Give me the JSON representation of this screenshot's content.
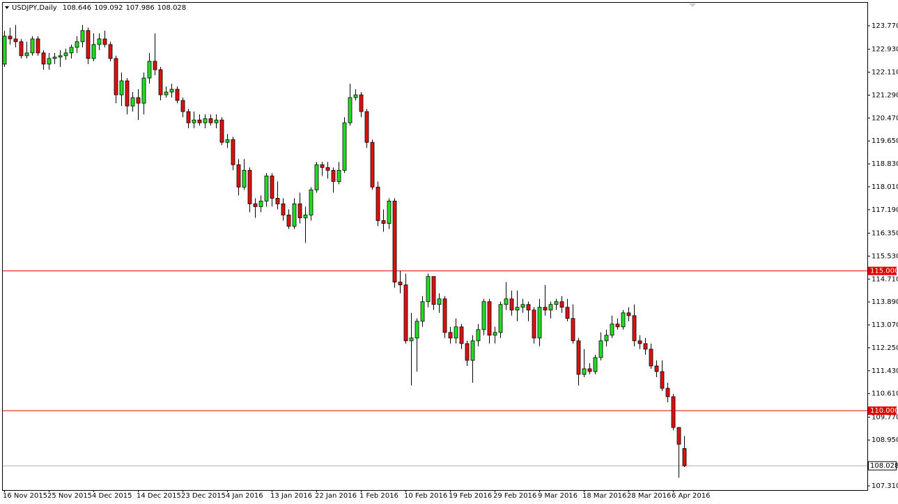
{
  "chart_data": {
    "type": "candlestick",
    "symbol": "USDJPY,Daily",
    "header_values": [
      108.646,
      109.092,
      107.986,
      108.028
    ],
    "categories": [
      "16 Nov 2015",
      null,
      null,
      null,
      null,
      null,
      null,
      null,
      "25 Nov 2015",
      null,
      null,
      null,
      null,
      null,
      null,
      null,
      "4 Dec 2015",
      null,
      null,
      null,
      null,
      null,
      null,
      null,
      "14 Dec 2015",
      null,
      null,
      null,
      null,
      null,
      null,
      null,
      "23 Dec 2015",
      null,
      null,
      null,
      null,
      null,
      null,
      null,
      "4 Jan 2016",
      null,
      null,
      null,
      null,
      null,
      null,
      null,
      "13 Jan 2016",
      null,
      null,
      null,
      null,
      null,
      null,
      null,
      "22 Jan 2016",
      null,
      null,
      null,
      null,
      null,
      null,
      null,
      "1 Feb 2016",
      null,
      null,
      null,
      null,
      null,
      null,
      null,
      "10 Feb 2016",
      null,
      null,
      null,
      null,
      null,
      null,
      null,
      "19 Feb 2016",
      null,
      null,
      null,
      null,
      null,
      null,
      null,
      "29 Feb 2016",
      null,
      null,
      null,
      null,
      null,
      null,
      null,
      "9 Mar 2016",
      null,
      null,
      null,
      null,
      null,
      null,
      null,
      "18 Mar 2016",
      null,
      null,
      null,
      null,
      null,
      null,
      null,
      "28 Mar 2016",
      null,
      null,
      null,
      null,
      null,
      null,
      null,
      "6 Apr 2016",
      null,
      null
    ],
    "open": [
      122.4,
      123.4,
      123.3,
      123.2,
      122.7,
      122.8,
      123.3,
      122.8,
      122.4,
      122.6,
      122.65,
      122.7,
      122.8,
      123.0,
      123.2,
      123.6,
      122.6,
      123.1,
      123.3,
      123.1,
      122.6,
      121.3,
      121.8,
      120.9,
      121.2,
      121.0,
      121.9,
      122.5,
      122.2,
      121.3,
      121.4,
      121.5,
      121.1,
      120.7,
      120.3,
      120.4,
      120.3,
      120.45,
      120.3,
      120.4,
      119.6,
      119.7,
      118.8,
      118.0,
      118.6,
      117.4,
      117.3,
      117.5,
      118.4,
      117.6,
      117.4,
      117.0,
      116.6,
      117.4,
      116.9,
      117.0,
      117.9,
      118.8,
      118.7,
      118.6,
      118.2,
      118.6,
      120.3,
      121.2,
      121.3,
      120.7,
      119.6,
      118.0,
      116.8,
      116.7,
      117.5,
      114.6,
      114.5,
      112.5,
      112.6,
      113.2,
      113.9,
      114.8,
      113.8,
      114.0,
      112.8,
      112.6,
      113.0,
      112.4,
      111.8,
      112.5,
      112.9,
      113.9,
      112.7,
      112.8,
      113.8,
      114.0,
      113.6,
      113.7,
      113.8,
      113.6,
      112.6,
      113.7,
      113.6,
      113.8,
      113.9,
      113.7,
      113.3,
      112.5,
      111.3,
      111.5,
      111.4,
      111.9,
      112.5,
      112.7,
      113.1,
      113.0,
      113.5,
      113.4,
      112.5,
      112.4,
      112.2,
      111.6,
      111.4,
      110.8,
      110.5,
      109.4,
      108.646
    ],
    "high": [
      123.6,
      123.7,
      123.8,
      123.3,
      123.2,
      123.4,
      123.4,
      122.9,
      122.8,
      122.8,
      122.9,
      122.95,
      123.1,
      123.4,
      123.8,
      123.7,
      123.5,
      123.5,
      123.6,
      123.2,
      122.7,
      122.1,
      121.9,
      121.4,
      121.5,
      122.1,
      122.8,
      123.5,
      122.3,
      121.6,
      121.7,
      121.6,
      121.2,
      120.8,
      120.7,
      120.6,
      120.6,
      120.6,
      120.6,
      120.5,
      119.9,
      119.8,
      119.0,
      119.0,
      118.7,
      117.6,
      117.7,
      118.5,
      118.5,
      118.2,
      117.6,
      117.2,
      117.6,
      117.8,
      117.3,
      118.0,
      118.9,
      118.9,
      118.9,
      118.7,
      118.9,
      120.5,
      121.7,
      121.5,
      121.4,
      120.8,
      119.7,
      118.2,
      117.2,
      117.6,
      117.6,
      115.0,
      114.9,
      113.5,
      113.3,
      114.1,
      114.9,
      114.8,
      114.2,
      114.1,
      113.0,
      113.3,
      113.1,
      112.5,
      112.7,
      113.1,
      114.0,
      114.0,
      113.0,
      113.9,
      114.6,
      114.3,
      114.3,
      114.0,
      113.9,
      113.7,
      114.0,
      114.5,
      113.9,
      114.0,
      114.1,
      114.0,
      113.8,
      112.6,
      112.2,
      111.7,
      112.0,
      112.8,
      112.9,
      113.4,
      113.3,
      113.6,
      113.7,
      113.8,
      112.7,
      112.6,
      112.4,
      111.8,
      111.8,
      111.0,
      110.6,
      109.4,
      109.092
    ],
    "low": [
      122.3,
      123.1,
      123.0,
      122.6,
      122.6,
      122.7,
      122.7,
      122.2,
      122.2,
      122.4,
      122.3,
      122.55,
      122.6,
      122.8,
      123.0,
      122.4,
      122.5,
      122.9,
      123.0,
      122.5,
      121.0,
      120.9,
      120.6,
      120.7,
      120.4,
      120.6,
      121.7,
      122.0,
      121.1,
      121.2,
      121.2,
      121.0,
      120.5,
      120.1,
      120.1,
      120.2,
      120.1,
      120.2,
      120.1,
      119.5,
      119.4,
      118.6,
      117.7,
      117.9,
      117.1,
      116.9,
      117.1,
      117.3,
      117.3,
      117.2,
      116.8,
      116.5,
      116.5,
      116.7,
      116.0,
      116.8,
      117.8,
      118.4,
      118.3,
      117.8,
      118.1,
      118.5,
      120.2,
      121.1,
      120.5,
      119.4,
      117.9,
      116.6,
      116.4,
      116.5,
      114.4,
      114.2,
      112.4,
      110.9,
      111.4,
      113.0,
      113.7,
      113.6,
      113.5,
      112.6,
      112.4,
      112.4,
      112.2,
      111.6,
      111.0,
      112.3,
      112.7,
      112.4,
      112.4,
      112.6,
      113.6,
      113.4,
      113.2,
      113.5,
      113.2,
      112.4,
      112.3,
      113.4,
      113.3,
      113.6,
      113.5,
      113.2,
      112.4,
      110.9,
      111.2,
      111.3,
      111.3,
      111.8,
      112.3,
      112.6,
      112.9,
      112.9,
      113.2,
      112.3,
      112.2,
      112.0,
      111.5,
      111.2,
      110.7,
      110.3,
      109.3,
      107.6,
      107.986
    ],
    "close": [
      123.4,
      123.3,
      123.2,
      122.7,
      122.8,
      123.3,
      122.8,
      122.4,
      122.6,
      122.65,
      122.7,
      122.8,
      123.0,
      123.2,
      123.6,
      122.6,
      123.1,
      123.3,
      123.1,
      122.6,
      121.3,
      121.8,
      120.9,
      121.2,
      121.0,
      121.9,
      122.5,
      122.2,
      121.3,
      121.4,
      121.5,
      121.1,
      120.7,
      120.3,
      120.4,
      120.3,
      120.45,
      120.3,
      120.4,
      119.6,
      119.7,
      118.8,
      118.0,
      118.6,
      117.4,
      117.3,
      117.5,
      118.4,
      117.6,
      117.4,
      117.0,
      116.6,
      117.4,
      116.9,
      117.0,
      117.9,
      118.8,
      118.7,
      118.6,
      118.2,
      118.6,
      120.3,
      121.2,
      121.3,
      120.7,
      119.6,
      118.0,
      116.8,
      116.7,
      117.5,
      114.6,
      114.5,
      112.5,
      112.6,
      113.2,
      113.9,
      114.8,
      113.8,
      114.0,
      112.8,
      112.6,
      113.0,
      112.4,
      111.8,
      112.5,
      112.9,
      113.9,
      112.7,
      112.8,
      113.8,
      114.0,
      113.6,
      113.7,
      113.8,
      113.6,
      112.6,
      113.7,
      113.6,
      113.8,
      113.9,
      113.7,
      113.3,
      112.5,
      111.3,
      111.5,
      111.4,
      111.9,
      112.5,
      112.7,
      113.1,
      113.0,
      113.5,
      113.4,
      112.5,
      112.4,
      112.2,
      111.6,
      111.4,
      110.8,
      110.5,
      109.4,
      108.8,
      108.028
    ],
    "up_color": "#22dd22",
    "down_color": "#dd1111",
    "ylim": [
      107.16,
      124.618
    ],
    "yticks": [
      {
        "value": 123.77,
        "label": "123.770"
      },
      {
        "value": 122.93,
        "label": "122.930"
      },
      {
        "value": 122.11,
        "label": "122.110"
      },
      {
        "value": 121.29,
        "label": "121.290"
      },
      {
        "value": 120.47,
        "label": "120.470"
      },
      {
        "value": 119.65,
        "label": "119.650"
      },
      {
        "value": 118.83,
        "label": "118.830"
      },
      {
        "value": 118.01,
        "label": "118.010"
      },
      {
        "value": 117.19,
        "label": "117.190"
      },
      {
        "value": 116.35,
        "label": "116.350"
      },
      {
        "value": 115.53,
        "label": "115.530"
      },
      {
        "value": 114.71,
        "label": "114.710"
      },
      {
        "value": 113.89,
        "label": "113.890"
      },
      {
        "value": 113.07,
        "label": "113.070"
      },
      {
        "value": 112.25,
        "label": "112.250"
      },
      {
        "value": 111.43,
        "label": "111.430"
      },
      {
        "value": 110.61,
        "label": "110.610"
      },
      {
        "value": 109.77,
        "label": "109.770"
      },
      {
        "value": 108.95,
        "label": "108.950"
      },
      {
        "value": 107.31,
        "label": "107.310"
      }
    ],
    "levels": [
      {
        "value": 115.0,
        "label": "115.000"
      },
      {
        "value": 110.0,
        "label": "110.000"
      }
    ],
    "level_color": "#e00000",
    "current_price": {
      "value": 108.028,
      "label": "108.028"
    }
  }
}
